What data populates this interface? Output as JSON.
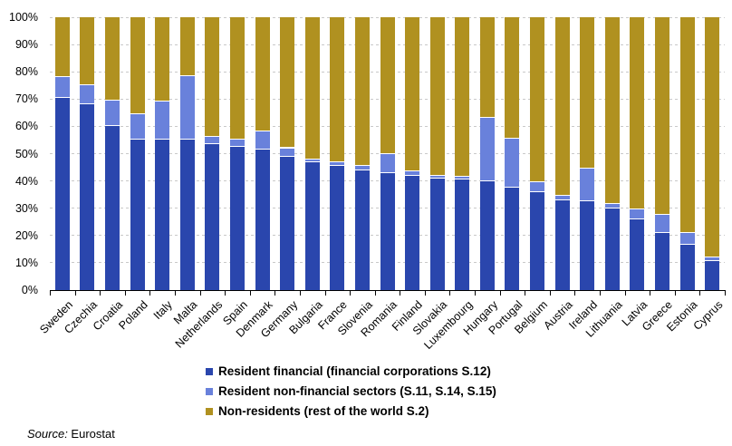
{
  "chart_data": {
    "type": "bar",
    "stacked": true,
    "orientation": "vertical",
    "unit": "%",
    "ylim": [
      0,
      100
    ],
    "ytick_step": 10,
    "yticks": [
      "0%",
      "10%",
      "20%",
      "30%",
      "40%",
      "50%",
      "60%",
      "70%",
      "80%",
      "90%",
      "100%"
    ],
    "grid": "horizontal-dashed",
    "legend_position": "bottom",
    "categories": [
      "Sweden",
      "Czechia",
      "Croatia",
      "Poland",
      "Italy",
      "Malta",
      "Netherlands",
      "Spain",
      "Denmark",
      "Germany",
      "Bulgaria",
      "France",
      "Slovenia",
      "Romania",
      "Finland",
      "Slovakia",
      "Luxembourg",
      "Hungary",
      "Portugal",
      "Belgium",
      "Austria",
      "Ireland",
      "Lithuania",
      "Latvia",
      "Greece",
      "Estonia",
      "Cyprus"
    ],
    "series": [
      {
        "name": "Resident financial (financial corporations S.12)",
        "color": "#2A46AD",
        "values": [
          70.5,
          68,
          60,
          55,
          55,
          55,
          53.5,
          52.5,
          51.5,
          49,
          47,
          45.5,
          44,
          43,
          42,
          41,
          40.5,
          40,
          37.5,
          36,
          33,
          32.5,
          30,
          26,
          21,
          16.5,
          10.5
        ]
      },
      {
        "name": "Resident non-financial sectors (S.11, S.14, S.15)",
        "color": "#6981DB",
        "values": [
          7.5,
          7,
          9.5,
          9.5,
          14,
          23.5,
          2.5,
          2.5,
          6.5,
          3,
          1,
          1.5,
          1.5,
          7,
          1.5,
          1,
          1,
          23,
          18,
          3.5,
          1.5,
          12,
          1.5,
          3.5,
          6.5,
          4.5,
          1.5
        ]
      },
      {
        "name": "Non-residents (rest of the world S.2)",
        "color": "#B09120",
        "values": [
          22,
          25,
          30.5,
          35.5,
          31,
          21.5,
          44,
          45,
          42,
          48,
          52,
          53,
          54.5,
          50,
          56.5,
          58,
          58.5,
          37,
          44.5,
          60.5,
          65.5,
          55.5,
          68.5,
          70.5,
          72.5,
          79,
          88
        ]
      }
    ]
  },
  "colors": {
    "gridline": "#C9C9C9",
    "axis": "#000000",
    "background": "#FFFFFF"
  },
  "source": {
    "label": "Source:",
    "value": " Eurostat"
  }
}
